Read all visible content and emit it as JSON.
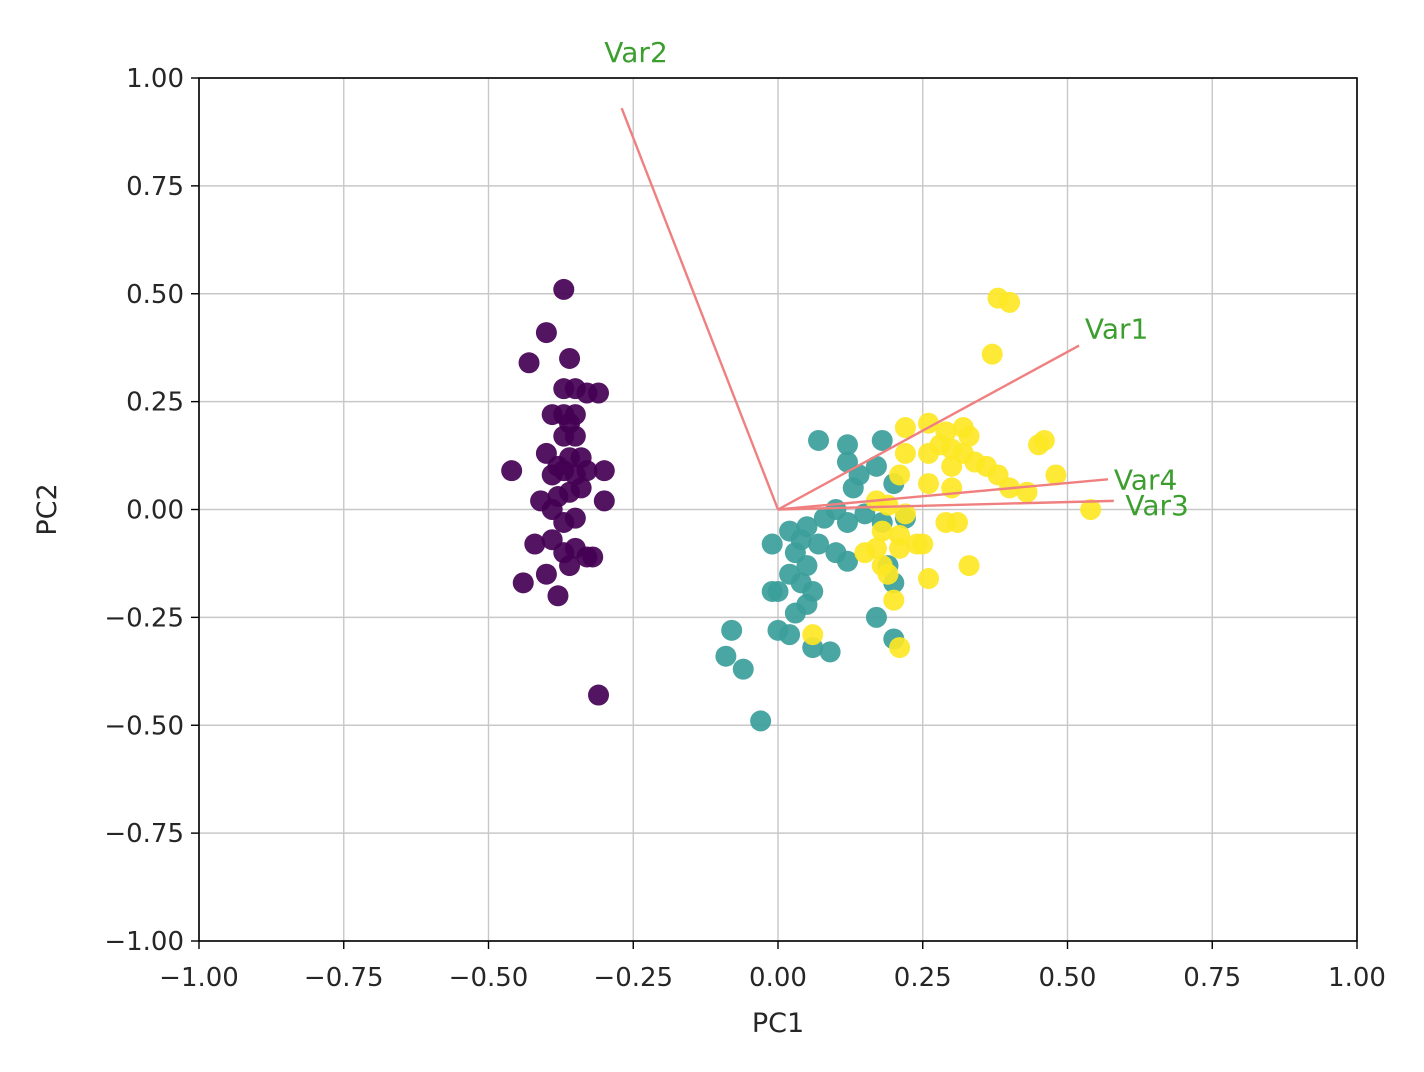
{
  "chart_data": {
    "type": "scatter",
    "title": "",
    "xlabel": "PC1",
    "ylabel": "PC2",
    "xlim": [
      -1.0,
      1.0
    ],
    "ylim": [
      -1.0,
      1.0
    ],
    "grid": true,
    "xticks": [
      "−1.00",
      "−0.75",
      "−0.50",
      "−0.25",
      "0.00",
      "0.25",
      "0.50",
      "0.75",
      "1.00"
    ],
    "yticks": [
      "−1.00",
      "−0.75",
      "−0.50",
      "−0.25",
      "0.00",
      "0.25",
      "0.50",
      "0.75",
      "1.00"
    ],
    "colors": {
      "group0": "#440154",
      "group1": "#3b9e9a",
      "group2": "#fde725",
      "vector": "#f08080",
      "vector_label": "#3c9e2f",
      "grid": "#c8c8c8"
    },
    "groups": [
      {
        "color_key": "group0",
        "points": [
          [
            -0.37,
            0.51
          ],
          [
            -0.4,
            0.41
          ],
          [
            -0.43,
            0.34
          ],
          [
            -0.36,
            0.35
          ],
          [
            -0.37,
            0.28
          ],
          [
            -0.35,
            0.28
          ],
          [
            -0.31,
            0.27
          ],
          [
            -0.33,
            0.27
          ],
          [
            -0.39,
            0.22
          ],
          [
            -0.37,
            0.22
          ],
          [
            -0.36,
            0.2
          ],
          [
            -0.35,
            0.22
          ],
          [
            -0.37,
            0.17
          ],
          [
            -0.35,
            0.17
          ],
          [
            -0.4,
            0.13
          ],
          [
            -0.38,
            0.1
          ],
          [
            -0.36,
            0.12
          ],
          [
            -0.34,
            0.12
          ],
          [
            -0.46,
            0.09
          ],
          [
            -0.39,
            0.08
          ],
          [
            -0.37,
            0.09
          ],
          [
            -0.35,
            0.08
          ],
          [
            -0.33,
            0.09
          ],
          [
            -0.3,
            0.09
          ],
          [
            -0.41,
            0.02
          ],
          [
            -0.38,
            0.03
          ],
          [
            -0.36,
            0.04
          ],
          [
            -0.34,
            0.05
          ],
          [
            -0.3,
            0.02
          ],
          [
            -0.39,
            0.0
          ],
          [
            -0.37,
            -0.03
          ],
          [
            -0.35,
            -0.02
          ],
          [
            -0.42,
            -0.08
          ],
          [
            -0.39,
            -0.07
          ],
          [
            -0.37,
            -0.1
          ],
          [
            -0.35,
            -0.09
          ],
          [
            -0.33,
            -0.11
          ],
          [
            -0.32,
            -0.11
          ],
          [
            -0.36,
            -0.13
          ],
          [
            -0.4,
            -0.15
          ],
          [
            -0.44,
            -0.17
          ],
          [
            -0.38,
            -0.2
          ],
          [
            -0.31,
            -0.43
          ]
        ]
      },
      {
        "color_key": "group1",
        "points": [
          [
            0.07,
            0.16
          ],
          [
            0.12,
            0.15
          ],
          [
            0.18,
            0.16
          ],
          [
            0.12,
            0.11
          ],
          [
            0.14,
            0.08
          ],
          [
            0.17,
            0.1
          ],
          [
            0.2,
            0.06
          ],
          [
            0.13,
            0.05
          ],
          [
            0.1,
            0.0
          ],
          [
            0.12,
            -0.03
          ],
          [
            0.08,
            -0.02
          ],
          [
            0.05,
            -0.04
          ],
          [
            0.02,
            -0.05
          ],
          [
            0.04,
            -0.07
          ],
          [
            0.07,
            -0.08
          ],
          [
            0.1,
            -0.1
          ],
          [
            0.12,
            -0.12
          ],
          [
            -0.01,
            -0.08
          ],
          [
            0.03,
            -0.1
          ],
          [
            0.05,
            -0.13
          ],
          [
            0.02,
            -0.15
          ],
          [
            0.04,
            -0.17
          ],
          [
            0.06,
            -0.19
          ],
          [
            0.0,
            -0.19
          ],
          [
            -0.01,
            -0.19
          ],
          [
            0.03,
            -0.24
          ],
          [
            0.05,
            -0.22
          ],
          [
            0.17,
            -0.25
          ],
          [
            0.2,
            -0.17
          ],
          [
            0.19,
            -0.13
          ],
          [
            0.2,
            -0.3
          ],
          [
            0.0,
            -0.28
          ],
          [
            0.02,
            -0.29
          ],
          [
            0.06,
            -0.32
          ],
          [
            0.09,
            -0.33
          ],
          [
            -0.08,
            -0.28
          ],
          [
            -0.09,
            -0.34
          ],
          [
            -0.06,
            -0.37
          ],
          [
            -0.03,
            -0.49
          ],
          [
            0.18,
            -0.03
          ],
          [
            0.15,
            -0.01
          ],
          [
            0.22,
            -0.02
          ]
        ]
      },
      {
        "color_key": "group2",
        "points": [
          [
            0.38,
            0.49
          ],
          [
            0.4,
            0.48
          ],
          [
            0.37,
            0.36
          ],
          [
            0.22,
            0.19
          ],
          [
            0.26,
            0.2
          ],
          [
            0.29,
            0.18
          ],
          [
            0.32,
            0.19
          ],
          [
            0.33,
            0.17
          ],
          [
            0.28,
            0.15
          ],
          [
            0.3,
            0.14
          ],
          [
            0.32,
            0.13
          ],
          [
            0.34,
            0.11
          ],
          [
            0.36,
            0.1
          ],
          [
            0.38,
            0.08
          ],
          [
            0.46,
            0.16
          ],
          [
            0.45,
            0.15
          ],
          [
            0.48,
            0.08
          ],
          [
            0.22,
            0.13
          ],
          [
            0.26,
            0.13
          ],
          [
            0.3,
            0.1
          ],
          [
            0.21,
            0.08
          ],
          [
            0.26,
            0.06
          ],
          [
            0.3,
            0.05
          ],
          [
            0.4,
            0.05
          ],
          [
            0.43,
            0.04
          ],
          [
            0.54,
            0.0
          ],
          [
            0.17,
            0.02
          ],
          [
            0.19,
            0.01
          ],
          [
            0.22,
            -0.01
          ],
          [
            0.29,
            -0.03
          ],
          [
            0.31,
            -0.03
          ],
          [
            0.18,
            -0.05
          ],
          [
            0.21,
            -0.06
          ],
          [
            0.17,
            -0.09
          ],
          [
            0.21,
            -0.09
          ],
          [
            0.24,
            -0.08
          ],
          [
            0.25,
            -0.08
          ],
          [
            0.15,
            -0.1
          ],
          [
            0.18,
            -0.13
          ],
          [
            0.19,
            -0.15
          ],
          [
            0.26,
            -0.16
          ],
          [
            0.33,
            -0.13
          ],
          [
            0.2,
            -0.21
          ],
          [
            0.06,
            -0.29
          ],
          [
            0.21,
            -0.32
          ]
        ]
      }
    ],
    "vectors": [
      {
        "name": "Var1",
        "x": 0.52,
        "y": 0.38,
        "label_x": 0.53,
        "label_y": 0.42
      },
      {
        "name": "Var2",
        "x": -0.27,
        "y": 0.93,
        "label_x": -0.3,
        "label_y": 1.06
      },
      {
        "name": "Var3",
        "x": 0.58,
        "y": 0.02,
        "label_x": 0.6,
        "label_y": 0.01
      },
      {
        "name": "Var4",
        "x": 0.57,
        "y": 0.07,
        "label_x": 0.58,
        "label_y": 0.07
      }
    ]
  }
}
